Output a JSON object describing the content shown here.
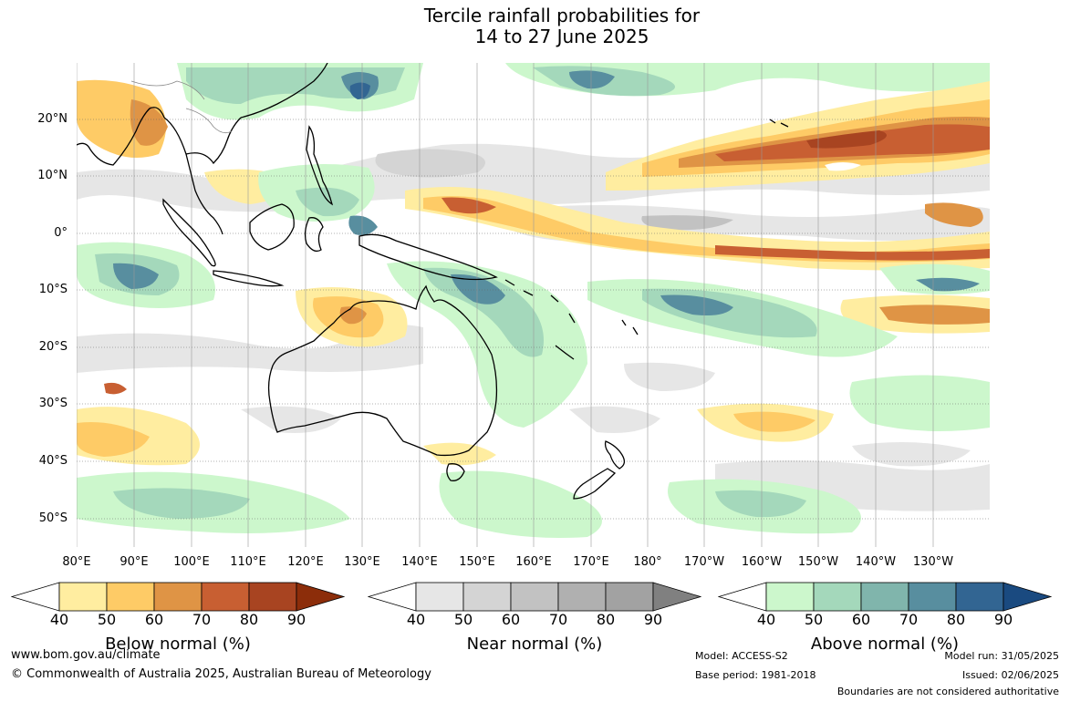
{
  "title": {
    "line1": "Tercile rainfall probabilities for",
    "line2": "14 to 27 June 2025"
  },
  "map": {
    "lat_labels": [
      "20°N",
      "10°N",
      "0°",
      "10°S",
      "20°S",
      "30°S",
      "40°S",
      "50°S"
    ],
    "lon_labels": [
      "80°E",
      "90°E",
      "100°E",
      "110°E",
      "120°E",
      "130°E",
      "140°E",
      "150°E",
      "160°E",
      "170°E",
      "180°",
      "170°W",
      "160°W",
      "150°W",
      "140°W",
      "130°W"
    ],
    "grid": true,
    "coastline_color": "#000000"
  },
  "colorbars": [
    {
      "name": "below",
      "title": "Below normal (%)",
      "ticks": [
        "40",
        "50",
        "60",
        "70",
        "80",
        "90"
      ],
      "colors": [
        "#ffffff",
        "#ffeda0",
        "#fecb66",
        "#df9445",
        "#c85f32",
        "#a84421",
        "#8c2d0a"
      ]
    },
    {
      "name": "near",
      "title": "Near normal (%)",
      "ticks": [
        "40",
        "50",
        "60",
        "70",
        "80",
        "90"
      ],
      "colors": [
        "#ffffff",
        "#e6e6e6",
        "#d4d4d4",
        "#c2c2c2",
        "#b0b0b0",
        "#a2a2a2",
        "#808080"
      ]
    },
    {
      "name": "above",
      "title": "Above normal (%)",
      "ticks": [
        "40",
        "50",
        "60",
        "70",
        "80",
        "90"
      ],
      "colors": [
        "#ffffff",
        "#ccf7cc",
        "#a4d8bb",
        "#80b5ac",
        "#588e9f",
        "#326592",
        "#1a4a80"
      ]
    }
  ],
  "footer": {
    "url": "www.bom.gov.au/climate",
    "copyright": "© Commonwealth of Australia 2025, Australian Bureau of Meteorology",
    "model": "Model: ACCESS-S2",
    "base_period": "Base period: 1981-2018",
    "model_run": "Model run: 31/05/2025",
    "issued": "Issued: 02/06/2025",
    "disclaimer": "Boundaries are not considered authoritative"
  }
}
